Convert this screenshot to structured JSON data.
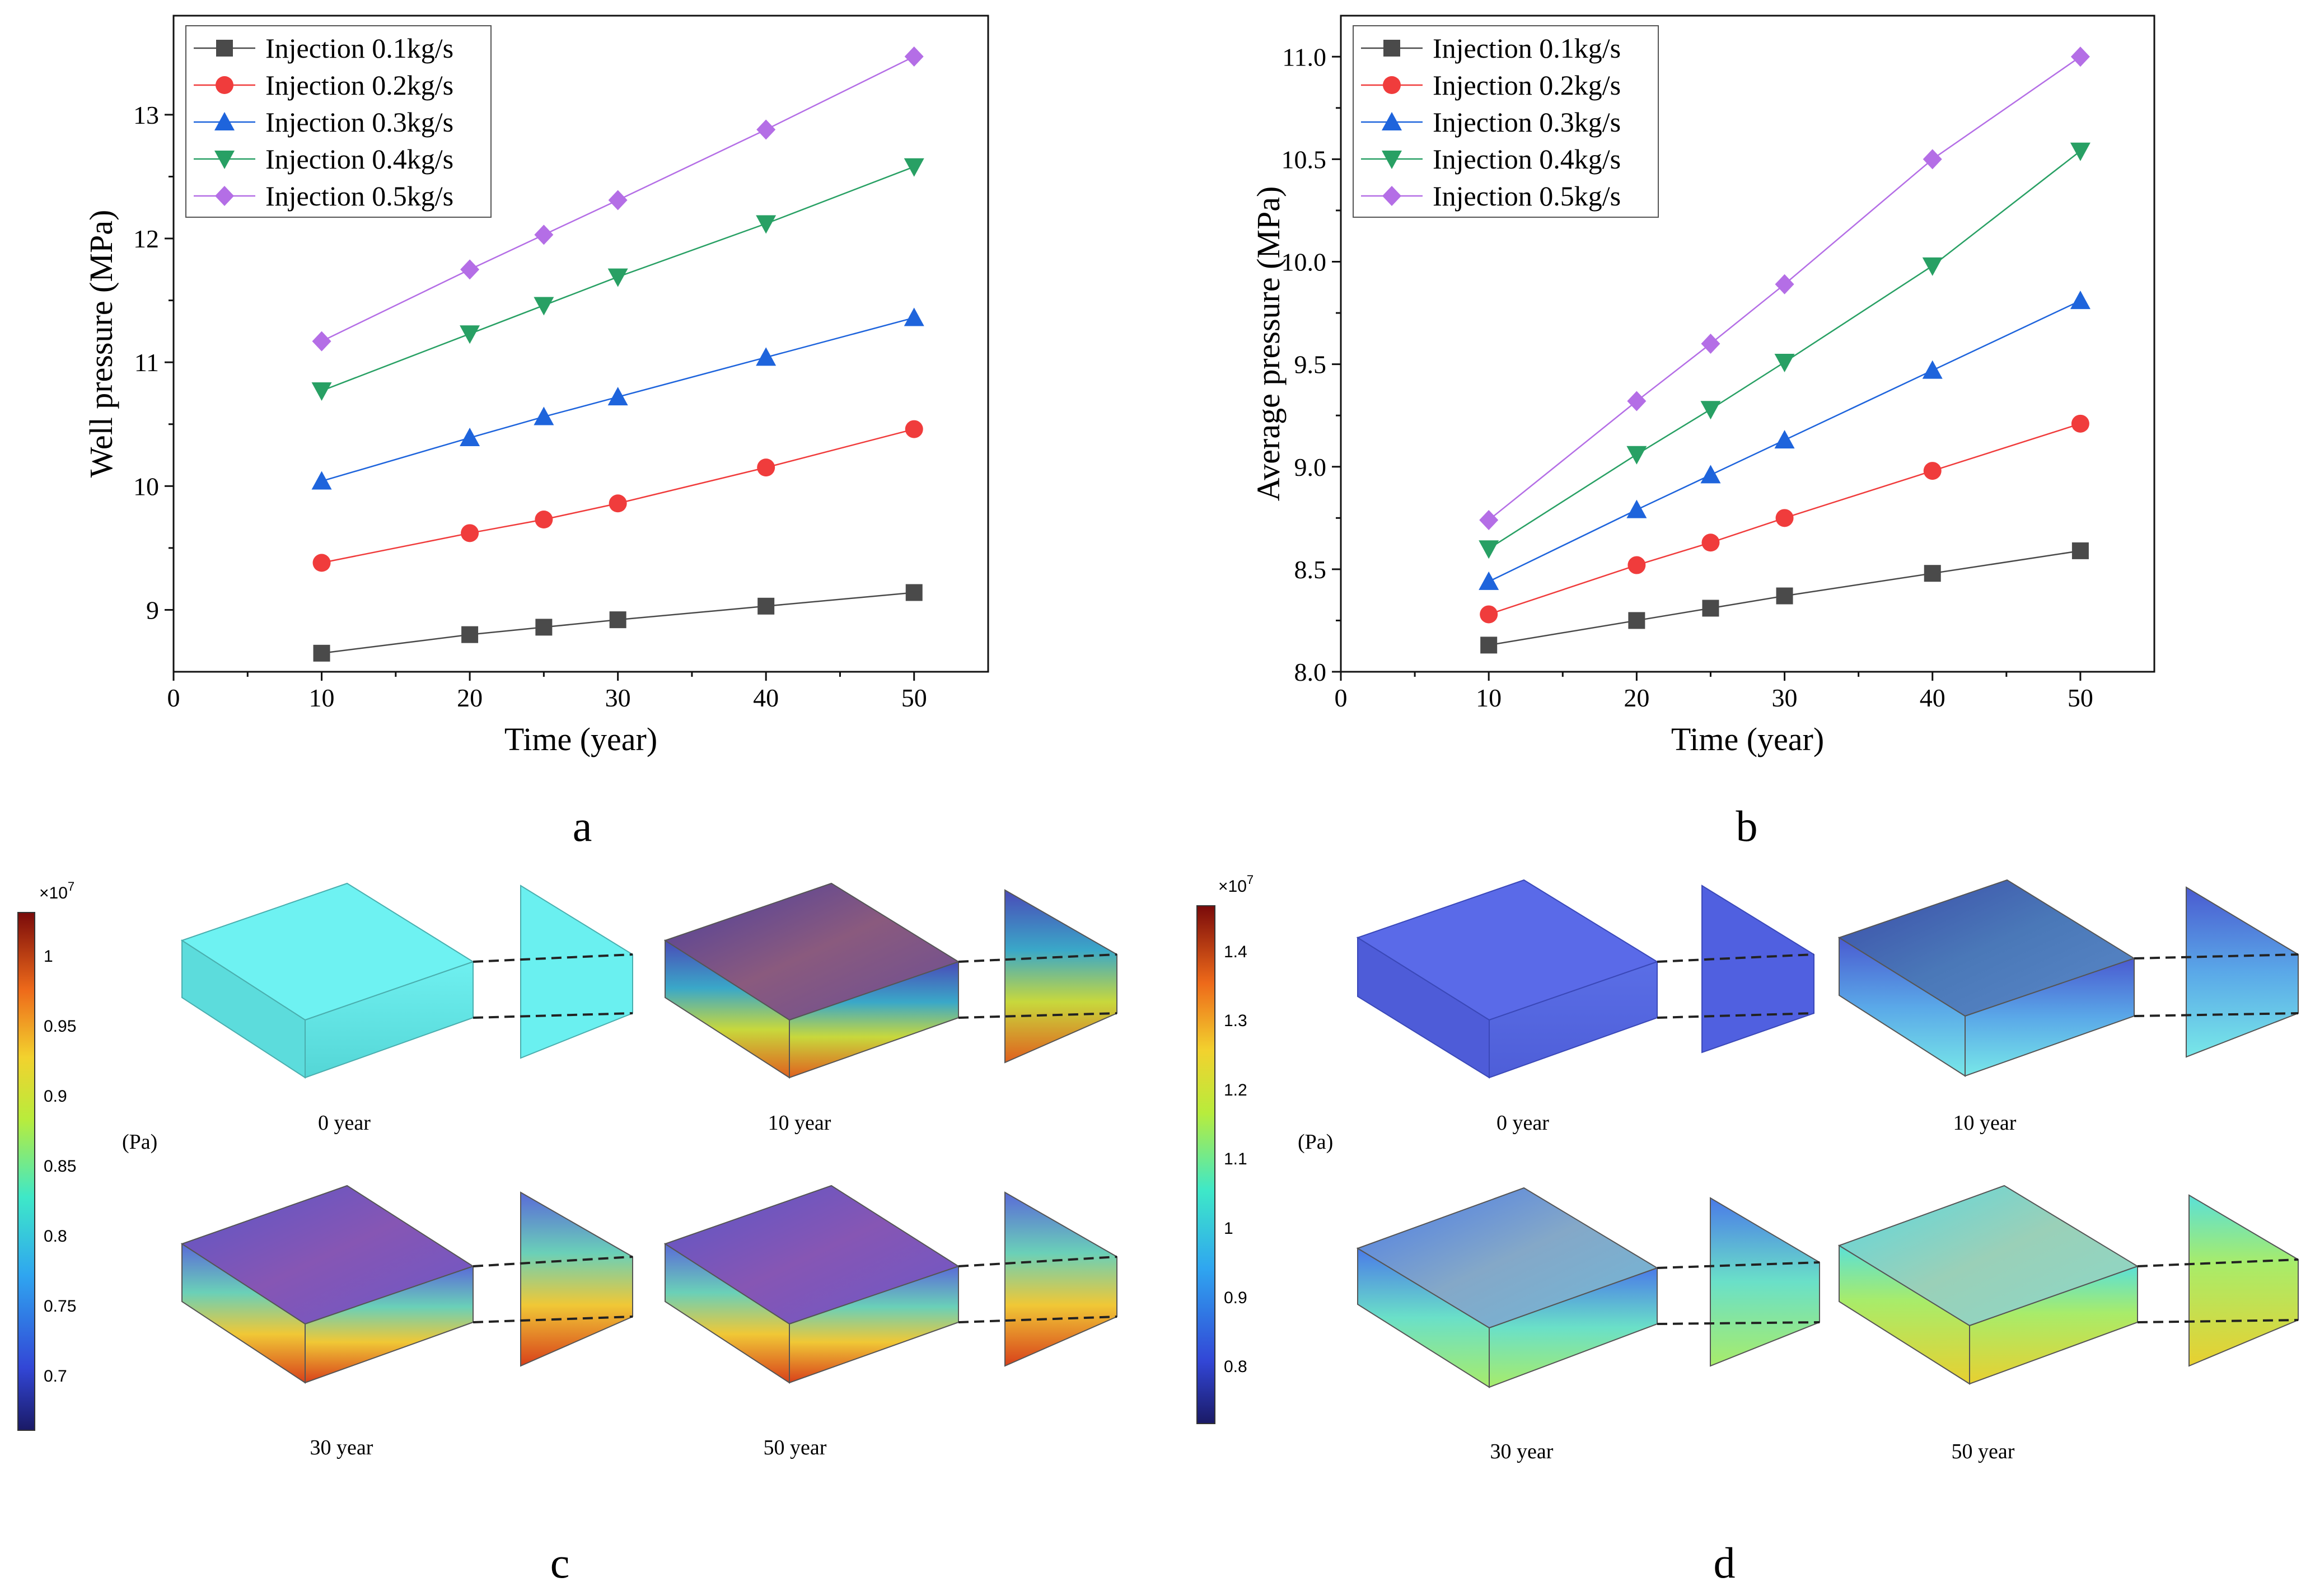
{
  "chart_data": [
    {
      "type": "line",
      "panel": "a",
      "xlabel": "Time (year)",
      "ylabel": "Well pressure (MPa)",
      "xlim": [
        0,
        55
      ],
      "ylim": [
        8.5,
        13.8
      ],
      "xticks": [
        0,
        10,
        20,
        30,
        40,
        50
      ],
      "yticks": [
        9,
        10,
        11,
        12,
        13
      ],
      "legend_position": "top-left",
      "x": [
        10,
        20,
        25,
        30,
        40,
        50
      ],
      "series": [
        {
          "name": "Injection 0.1kg/s",
          "color": "#4a4a4a",
          "marker": "square",
          "values": [
            8.65,
            8.8,
            8.86,
            8.92,
            9.03,
            9.14
          ]
        },
        {
          "name": "Injection 0.2kg/s",
          "color": "#f03c3c",
          "marker": "circle",
          "values": [
            9.38,
            9.62,
            9.73,
            9.86,
            10.15,
            10.46
          ]
        },
        {
          "name": "Injection 0.3kg/s",
          "color": "#1e64dc",
          "marker": "triangle-up",
          "values": [
            10.04,
            10.39,
            10.56,
            10.72,
            11.04,
            11.36
          ]
        },
        {
          "name": "Injection 0.4kg/s",
          "color": "#28a064",
          "marker": "triangle-down",
          "values": [
            10.77,
            11.23,
            11.46,
            11.69,
            12.12,
            12.58
          ]
        },
        {
          "name": "Injection 0.5kg/s",
          "color": "#b46ee6",
          "marker": "diamond",
          "values": [
            11.17,
            11.75,
            12.03,
            12.31,
            12.88,
            13.47
          ]
        }
      ]
    },
    {
      "type": "line",
      "panel": "b",
      "xlabel": "Time (year)",
      "ylabel": "Average pressure (MPa)",
      "xlim": [
        0,
        55
      ],
      "ylim": [
        8.0,
        11.2
      ],
      "xticks": [
        0,
        10,
        20,
        30,
        40,
        50
      ],
      "yticks": [
        8.0,
        8.5,
        9.0,
        9.5,
        10.0,
        10.5,
        11.0
      ],
      "legend_position": "top-left",
      "x": [
        10,
        20,
        25,
        30,
        40,
        50
      ],
      "series": [
        {
          "name": "Injection 0.1kg/s",
          "color": "#4a4a4a",
          "marker": "square",
          "values": [
            8.13,
            8.25,
            8.31,
            8.37,
            8.48,
            8.59
          ]
        },
        {
          "name": "Injection 0.2kg/s",
          "color": "#f03c3c",
          "marker": "circle",
          "values": [
            8.28,
            8.52,
            8.63,
            8.75,
            8.98,
            9.21
          ]
        },
        {
          "name": "Injection 0.3kg/s",
          "color": "#1e64dc",
          "marker": "triangle-up",
          "values": [
            8.44,
            8.79,
            8.96,
            9.13,
            9.47,
            9.81
          ]
        },
        {
          "name": "Injection 0.4kg/s",
          "color": "#28a064",
          "marker": "triangle-down",
          "values": [
            8.6,
            9.06,
            9.28,
            9.51,
            9.98,
            10.54
          ]
        },
        {
          "name": "Injection 0.5kg/s",
          "color": "#b46ee6",
          "marker": "diamond",
          "values": [
            8.74,
            9.32,
            9.6,
            9.89,
            10.5,
            11.0
          ]
        }
      ]
    }
  ],
  "panel_labels": {
    "a": "a",
    "b": "b",
    "c": "c",
    "d": "d"
  },
  "colorbars": {
    "c": {
      "exponent": "×10",
      "power": "7",
      "unit": "(Pa)",
      "ticks": [
        "1",
        "0.95",
        "0.9",
        "0.85",
        "0.8",
        "0.75",
        "0.7"
      ]
    },
    "d": {
      "exponent": "×10",
      "power": "7",
      "unit": "(Pa)",
      "ticks": [
        "1.4",
        "1.3",
        "1.2",
        "1.1",
        "1",
        "0.9",
        "0.8"
      ]
    }
  },
  "snapshots": {
    "c": [
      "0 year",
      "10 year",
      "30 year",
      "50 year"
    ],
    "d": [
      "0 year",
      "10 year",
      "30 year",
      "50 year"
    ]
  }
}
